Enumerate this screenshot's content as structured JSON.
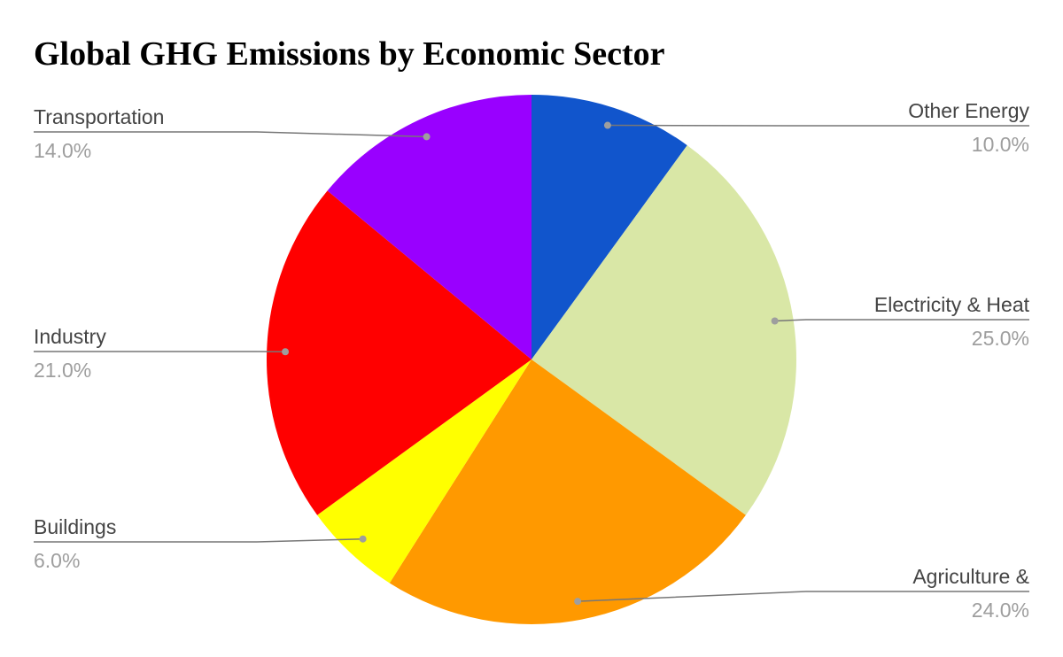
{
  "chart_data": {
    "type": "pie",
    "title": "Global GHG Emissions by Economic Sector",
    "slices": [
      {
        "label": "Other Energy",
        "percent_label": "10.0%",
        "value": 10.0,
        "color": "#1155cc"
      },
      {
        "label": "Electricity & Heat",
        "percent_label": "25.0%",
        "value": 25.0,
        "color": "#d9e7a6"
      },
      {
        "label": "Agriculture &",
        "percent_label": "24.0%",
        "value": 24.0,
        "color": "#ff9900"
      },
      {
        "label": "Buildings",
        "percent_label": "6.0%",
        "value": 6.0,
        "color": "#ffff00"
      },
      {
        "label": "Industry",
        "percent_label": "21.0%",
        "value": 21.0,
        "color": "#ff0000"
      },
      {
        "label": "Transportation",
        "percent_label": "14.0%",
        "value": 14.0,
        "color": "#9900ff"
      }
    ],
    "start_angle_deg": 0,
    "direction": "clockwise",
    "legend": "none"
  }
}
